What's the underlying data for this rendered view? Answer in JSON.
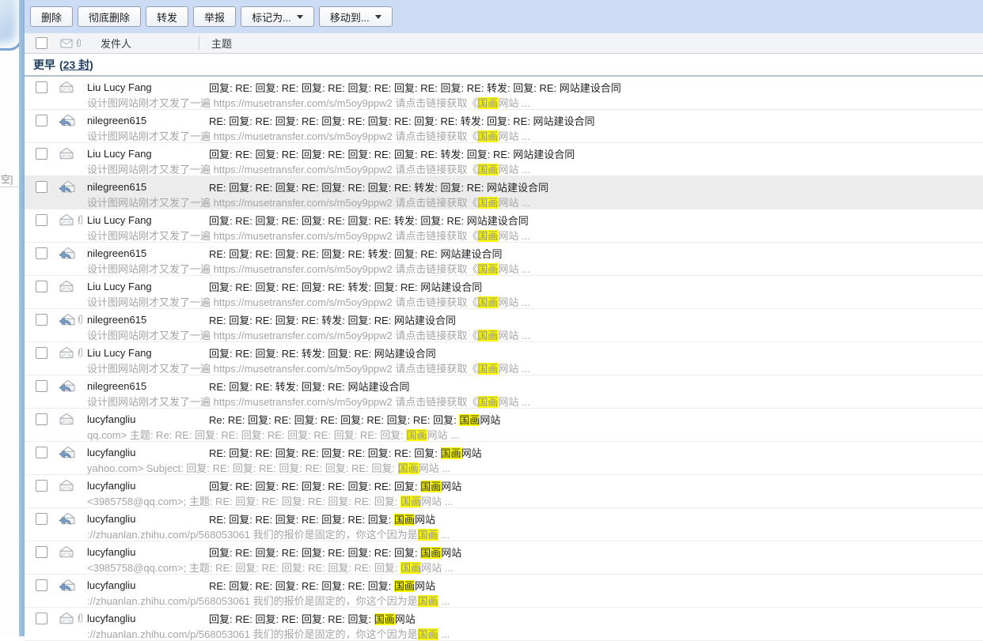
{
  "colors": {
    "toolbar_bg": "#cbdcf4",
    "highlight_bg": "#ffff00",
    "section_text": "#1f3d5e",
    "sidebar_strip": "#8db2d6",
    "hover_row_bg": "#ececec",
    "preview_text": "#a5a5a5"
  },
  "sidebar": {
    "partial_label": "空]"
  },
  "toolbar": {
    "buttons": [
      {
        "name": "delete-button",
        "label": "删除",
        "dropdown": false
      },
      {
        "name": "purge-button",
        "label": "彻底删除",
        "dropdown": false
      },
      {
        "name": "forward-button",
        "label": "转发",
        "dropdown": false
      },
      {
        "name": "report-button",
        "label": "举报",
        "dropdown": false
      },
      {
        "name": "mark-as-button",
        "label": "标记为...",
        "dropdown": true
      },
      {
        "name": "move-to-button",
        "label": "移动到...",
        "dropdown": true
      }
    ]
  },
  "list_header": {
    "sender": "发件人",
    "subject": "主题"
  },
  "section": {
    "title": "更早",
    "open_paren": "(",
    "count": "23 封",
    "close_paren": ")"
  },
  "rows": [
    {
      "sender": "Liu Lucy Fang",
      "icon": "read",
      "attachment": false,
      "hover": false,
      "subject": [
        "回复: RE: 回复: RE: 回复: RE: 回复: RE: 回复: RE: 回复: RE: 转发: 回复: RE: 网站建设合同"
      ],
      "preview": [
        "设计图网站刚才又发了一遍 https://musetransfer.com/s/m5oy9ppw2 请点击链接获取《",
        {
          "hl": "国画"
        },
        "网站 ..."
      ]
    },
    {
      "sender": "nilegreen615",
      "icon": "replied",
      "attachment": false,
      "hover": false,
      "subject": [
        "RE: 回复: RE: 回复: RE: 回复: RE: 回复: RE: 回复: RE: 转发: 回复: RE: 网站建设合同"
      ],
      "preview": [
        "设计图网站刚才又发了一遍 https://musetransfer.com/s/m5oy9ppw2 请点击链接获取《",
        {
          "hl": "国画"
        },
        "网站 ..."
      ]
    },
    {
      "sender": "Liu Lucy Fang",
      "icon": "read",
      "attachment": false,
      "hover": false,
      "subject": [
        "回复: RE: 回复: RE: 回复: RE: 回复: RE: 回复: RE: 转发: 回复: RE: 网站建设合同"
      ],
      "preview": [
        "设计图网站刚才又发了一遍 https://musetransfer.com/s/m5oy9ppw2 请点击链接获取《",
        {
          "hl": "国画"
        },
        "网站 ..."
      ]
    },
    {
      "sender": "nilegreen615",
      "icon": "replied",
      "attachment": false,
      "hover": true,
      "subject": [
        "RE: 回复: RE: 回复: RE: 回复: RE: 回复: RE: 转发: 回复: RE: 网站建设合同"
      ],
      "preview": [
        "设计图网站刚才又发了一遍 https://musetransfer.com/s/m5oy9ppw2 请点击链接获取《",
        {
          "hl": "国画"
        },
        "网站 ..."
      ]
    },
    {
      "sender": "Liu Lucy Fang",
      "icon": "read",
      "attachment": true,
      "hover": false,
      "subject": [
        "回复: RE: 回复: RE: 回复: RE: 回复: RE: 转发: 回复: RE: 网站建设合同"
      ],
      "preview": [
        "设计图网站刚才又发了一遍 https://musetransfer.com/s/m5oy9ppw2 请点击链接获取《",
        {
          "hl": "国画"
        },
        "网站 ..."
      ]
    },
    {
      "sender": "nilegreen615",
      "icon": "replied",
      "attachment": false,
      "hover": false,
      "subject": [
        "RE: 回复: RE: 回复: RE: 回复: RE: 转发: 回复: RE: 网站建设合同"
      ],
      "preview": [
        "设计图网站刚才又发了一遍 https://musetransfer.com/s/m5oy9ppw2 请点击链接获取《",
        {
          "hl": "国画"
        },
        "网站 ..."
      ]
    },
    {
      "sender": "Liu Lucy Fang",
      "icon": "read",
      "attachment": false,
      "hover": false,
      "subject": [
        "回复: RE: 回复: RE: 回复: RE: 转发: 回复: RE: 网站建设合同"
      ],
      "preview": [
        "设计图网站刚才又发了一遍 https://musetransfer.com/s/m5oy9ppw2 请点击链接获取《",
        {
          "hl": "国画"
        },
        "网站 ..."
      ]
    },
    {
      "sender": "nilegreen615",
      "icon": "replied",
      "attachment": true,
      "hover": false,
      "subject": [
        "RE: 回复: RE: 回复: RE: 转发: 回复: RE: 网站建设合同"
      ],
      "preview": [
        "设计图网站刚才又发了一遍 https://musetransfer.com/s/m5oy9ppw2 请点击链接获取《",
        {
          "hl": "国画"
        },
        "网站 ..."
      ]
    },
    {
      "sender": "Liu Lucy Fang",
      "icon": "read",
      "attachment": true,
      "hover": false,
      "subject": [
        "回复: RE: 回复: RE: 转发: 回复: RE: 网站建设合同"
      ],
      "preview": [
        "设计图网站刚才又发了一遍 https://musetransfer.com/s/m5oy9ppw2 请点击链接获取《",
        {
          "hl": "国画"
        },
        "网站 ..."
      ]
    },
    {
      "sender": "nilegreen615",
      "icon": "replied",
      "attachment": false,
      "hover": false,
      "subject": [
        "RE: 回复: RE: 转发: 回复: RE: 网站建设合同"
      ],
      "preview": [
        "设计图网站刚才又发了一遍 https://musetransfer.com/s/m5oy9ppw2 请点击链接获取《",
        {
          "hl": "国画"
        },
        "网站 ..."
      ]
    },
    {
      "sender": "lucyfangliu",
      "icon": "read",
      "attachment": false,
      "hover": false,
      "subject": [
        "Re: RE: 回复: RE: 回复: RE: 回复: RE: 回复: RE: 回复: ",
        {
          "hl": "国画"
        },
        "网站"
      ],
      "preview": [
        "qq.com> 主题: Re: RE: 回复: RE: 回复: RE: 回复: RE: 回复: RE: 回复: ",
        {
          "hl": "国画"
        },
        "网站 ..."
      ]
    },
    {
      "sender": "lucyfangliu",
      "icon": "replied",
      "attachment": false,
      "hover": false,
      "subject": [
        "RE: 回复: RE: 回复: RE: 回复: RE: 回复: RE: 回复: ",
        {
          "hl": "国画"
        },
        "网站"
      ],
      "preview": [
        "yahoo.com> Subject: 回复: RE: 回复: RE: 回复: RE: 回复: RE: 回复: ",
        {
          "hl": "国画"
        },
        "网站 ..."
      ]
    },
    {
      "sender": "lucyfangliu",
      "icon": "read",
      "attachment": false,
      "hover": false,
      "subject": [
        "回复: RE: 回复: RE: 回复: RE: 回复: RE: 回复: ",
        {
          "hl": "国画"
        },
        "网站"
      ],
      "preview": [
        "<3985758@qq.com>; 主题: RE: 回复: RE: 回复: RE: 回复: RE: 回复: ",
        {
          "hl": "国画"
        },
        "网站 ..."
      ]
    },
    {
      "sender": "lucyfangliu",
      "icon": "replied",
      "attachment": false,
      "hover": false,
      "subject": [
        "RE: 回复: RE: 回复: RE: 回复: RE: 回复: ",
        {
          "hl": "国画"
        },
        "网站"
      ],
      "preview": [
        "://zhuanlan.zhihu.com/p/568053061 我们的报价是固定的，你这个因为是",
        {
          "hl": "国画"
        },
        " ..."
      ]
    },
    {
      "sender": "lucyfangliu",
      "icon": "read",
      "attachment": false,
      "hover": false,
      "subject": [
        "回复: RE: 回复: RE: 回复: RE: 回复: RE: 回复: ",
        {
          "hl": "国画"
        },
        "网站"
      ],
      "preview": [
        "<3985758@qq.com>; 主题: RE: 回复: RE: 回复: RE: 回复: RE: 回复: ",
        {
          "hl": "国画"
        },
        "网站 ..."
      ]
    },
    {
      "sender": "lucyfangliu",
      "icon": "replied",
      "attachment": false,
      "hover": false,
      "subject": [
        "RE: 回复: RE: 回复: RE: 回复: RE: 回复: ",
        {
          "hl": "国画"
        },
        "网站"
      ],
      "preview": [
        "://zhuanlan.zhihu.com/p/568053061 我们的报价是固定的，你这个因为是",
        {
          "hl": "国画"
        },
        " ..."
      ]
    },
    {
      "sender": "lucyfangliu",
      "icon": "read",
      "attachment": true,
      "hover": false,
      "subject": [
        "回复: RE: 回复: RE: 回复: RE: 回复: ",
        {
          "hl": "国画"
        },
        "网站"
      ],
      "preview": [
        "://zhuanlan.zhihu.com/p/568053061 我们的报价是固定的，你这个因为是",
        {
          "hl": "国画"
        },
        " ..."
      ]
    }
  ]
}
